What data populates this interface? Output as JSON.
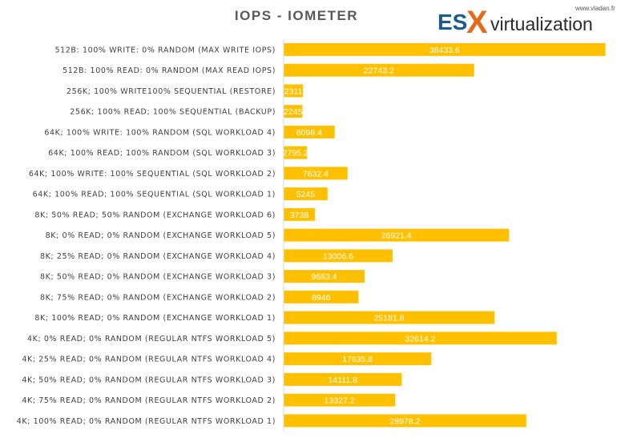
{
  "logo": {
    "es": "ES",
    "x": "X",
    "virtualization": "virtualization",
    "site": "www.vladan.fr"
  },
  "chart_data": {
    "type": "bar",
    "orientation": "horizontal",
    "title": "IOPS - IOMETER",
    "xlabel": "",
    "ylabel": "",
    "xlim": [
      0,
      40000
    ],
    "grid": false,
    "legend": "none",
    "bar_color": "#FFC000",
    "categories": [
      "512B: 100% WRITE: 0% RANDOM (MAX WRITE IOPS)",
      "512B: 100% READ: 0% RANDOM (MAX READ IOPS)",
      "256K; 100% WRITE100% SEQUENTIAL (RESTORE)",
      "256K; 100% READ; 100% SEQUENTIAL (BACKUP)",
      "64K; 100% WRITE: 100% RANDOM (SQL WORKLOAD 4)",
      "64K; 100% READ; 100% RANDOM (SQL WORKLOAD 3)",
      "64K; 100% WRITE: 100% SEQUENTIAL (SQL WORKLOAD 2)",
      "64K; 100% READ; 100% SEQUENTIAL (SQL WORKLOAD 1)",
      "8K; 50% READ; 50% RANDOM (EXCHANGE WORKLOAD 6)",
      "8K; 0% READ; 0% RANDOM (EXCHANGE WORKLOAD 5)",
      "8K; 25% READ; 0% RANDOM (EXCHANGE WORKLOAD 4)",
      "8K; 50% READ; 0% RANDOM (EXCHANGE WORKLOAD 3)",
      "8K; 75% READ; 0% RANDOM (EXCHANGE WORKLOAD 2)",
      "8K; 100% READ; 0% RANDOM (EXCHANGE WORKLOAD 1)",
      "4K; 0% READ; 0% RANDOM (REGULAR NTFS WORKLOAD 5)",
      "4K; 25% READ; 0% RANDOM (REGULAR NTFS WORKLOAD 4)",
      "4K; 50% READ; 0% RANDOM (REGULAR NTFS WORKLOAD 3)",
      "4K; 75% READ; 0% RANDOM (REGULAR NTFS WORKLOAD 2)",
      "4K; 100% READ; 0% RANDOM (REGULAR NTFS WORKLOAD 1)"
    ],
    "values": [
      38433.6,
      22743.2,
      2311,
      2245,
      6098.4,
      2795.2,
      7632.4,
      5245,
      3738,
      26921.4,
      13006.6,
      9663.4,
      8946,
      25181.8,
      32614.2,
      17635.8,
      14111.8,
      13327.2,
      28978.2
    ],
    "value_labels": [
      "38433.6",
      "22743.2",
      "2311",
      "2245",
      "6098.4",
      "2795.2",
      "7632.4",
      "5245",
      "3738",
      "26921.4",
      "13006.6",
      "9663.4",
      "8946",
      "25181.8",
      "32614.2",
      "17635.8",
      "14111.8",
      "13327.2",
      "28978.2"
    ]
  }
}
